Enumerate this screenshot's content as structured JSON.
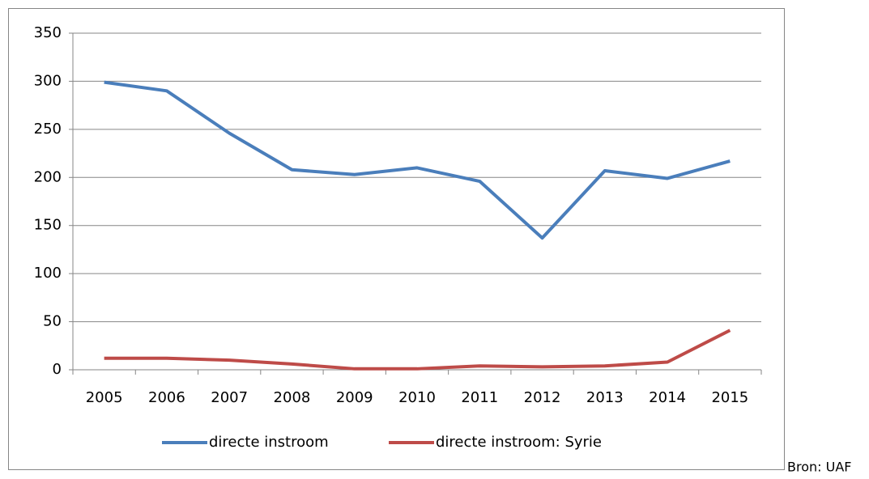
{
  "chart_data": {
    "type": "line",
    "categories": [
      "2005",
      "2006",
      "2007",
      "2008",
      "2009",
      "2010",
      "2011",
      "2012",
      "2013",
      "2014",
      "2015"
    ],
    "series": [
      {
        "name": "directe instroom",
        "color": "#4a7ebb",
        "values": [
          299,
          290,
          246,
          208,
          203,
          210,
          196,
          137,
          207,
          199,
          217
        ]
      },
      {
        "name": "directe instroom: Syrie",
        "color": "#be4b48",
        "values": [
          12,
          12,
          10,
          6,
          1,
          1,
          4,
          3,
          4,
          8,
          41
        ]
      }
    ],
    "ylim": [
      0,
      350
    ],
    "yticks": [
      0,
      50,
      100,
      150,
      200,
      250,
      300,
      350
    ],
    "grid": true,
    "legend": "bottom",
    "source": "Bron: UAF"
  }
}
